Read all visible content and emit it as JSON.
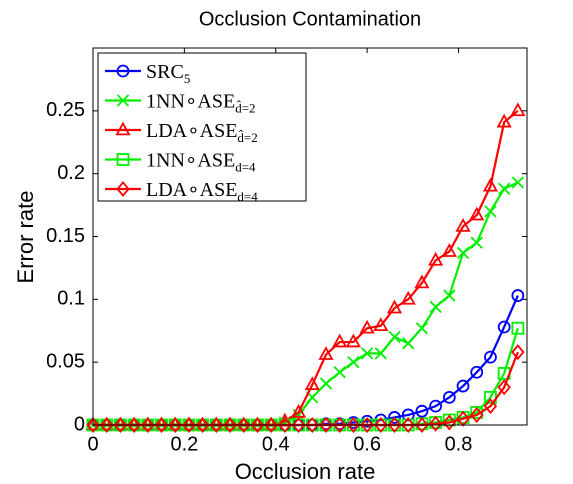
{
  "chart_data": {
    "type": "line",
    "title": "Occlusion Contamination",
    "xlabel": "Occlusion rate",
    "ylabel": "Error rate",
    "x": [
      0,
      0.03,
      0.06,
      0.09,
      0.12,
      0.15,
      0.18,
      0.21,
      0.24,
      0.27,
      0.3,
      0.33,
      0.36,
      0.39,
      0.42,
      0.45,
      0.48,
      0.51,
      0.54,
      0.57,
      0.6,
      0.63,
      0.66,
      0.69,
      0.72,
      0.75,
      0.78,
      0.81,
      0.84,
      0.87,
      0.9,
      0.93
    ],
    "xlim": [
      0,
      0.95
    ],
    "xticks": [
      0,
      0.2,
      0.4,
      0.6,
      0.8
    ],
    "ylim": [
      0,
      0.3
    ],
    "yticks": [
      0,
      0.05,
      0.1,
      0.15,
      0.2,
      0.25
    ],
    "legend": "upper left",
    "series": [
      {
        "name": "SRC",
        "subscript": "5",
        "color": "#0000ff",
        "marker": "circle",
        "values": [
          0,
          0,
          0,
          0,
          0,
          0,
          0,
          0,
          0,
          0,
          0,
          0,
          0,
          0,
          0,
          0,
          0,
          0.001,
          0.001,
          0.002,
          0.003,
          0.004,
          0.006,
          0.008,
          0.011,
          0.015,
          0.022,
          0.031,
          0.042,
          0.054,
          0.078,
          0.103
        ]
      },
      {
        "name": "1NN∘ASE",
        "subscript": "d̂=2",
        "color": "#00ee00",
        "marker": "x",
        "values": [
          0,
          0,
          0,
          0,
          0,
          0,
          0,
          0,
          0,
          0,
          0,
          0,
          0,
          0,
          0.002,
          0.008,
          0.022,
          0.033,
          0.042,
          0.05,
          0.057,
          0.057,
          0.07,
          0.065,
          0.077,
          0.094,
          0.103,
          0.137,
          0.145,
          0.17,
          0.188,
          0.193
        ]
      },
      {
        "name": "LDA∘ASE",
        "subscript": "d̂=2",
        "color": "#ff0000",
        "marker": "triangle",
        "values": [
          0,
          0,
          0,
          0,
          0,
          0,
          0,
          0,
          0,
          0,
          0,
          0,
          0,
          0,
          0.003,
          0.01,
          0.032,
          0.056,
          0.066,
          0.066,
          0.077,
          0.079,
          0.093,
          0.1,
          0.113,
          0.131,
          0.138,
          0.158,
          0.167,
          0.19,
          0.241,
          0.25
        ]
      },
      {
        "name": "1NN∘ASE",
        "subscript": "d=4",
        "color": "#00ee00",
        "marker": "square",
        "values": [
          0,
          0,
          0,
          0,
          0,
          0,
          0,
          0,
          0,
          0,
          0,
          0,
          0,
          0,
          0,
          0,
          0,
          0,
          0,
          0,
          0,
          0,
          0,
          0,
          0.001,
          0.002,
          0.004,
          0.006,
          0.01,
          0.022,
          0.041,
          0.077
        ]
      },
      {
        "name": "LDA∘ASE",
        "subscript": "d=4",
        "color": "#ff0000",
        "marker": "diamond",
        "values": [
          0,
          0,
          0,
          0,
          0,
          0,
          0,
          0,
          0,
          0,
          0,
          0,
          0,
          0,
          0,
          0,
          0,
          0,
          0,
          0,
          0,
          0,
          0,
          0,
          0,
          0.001,
          0.002,
          0.005,
          0.008,
          0.015,
          0.03,
          0.058
        ]
      }
    ]
  }
}
